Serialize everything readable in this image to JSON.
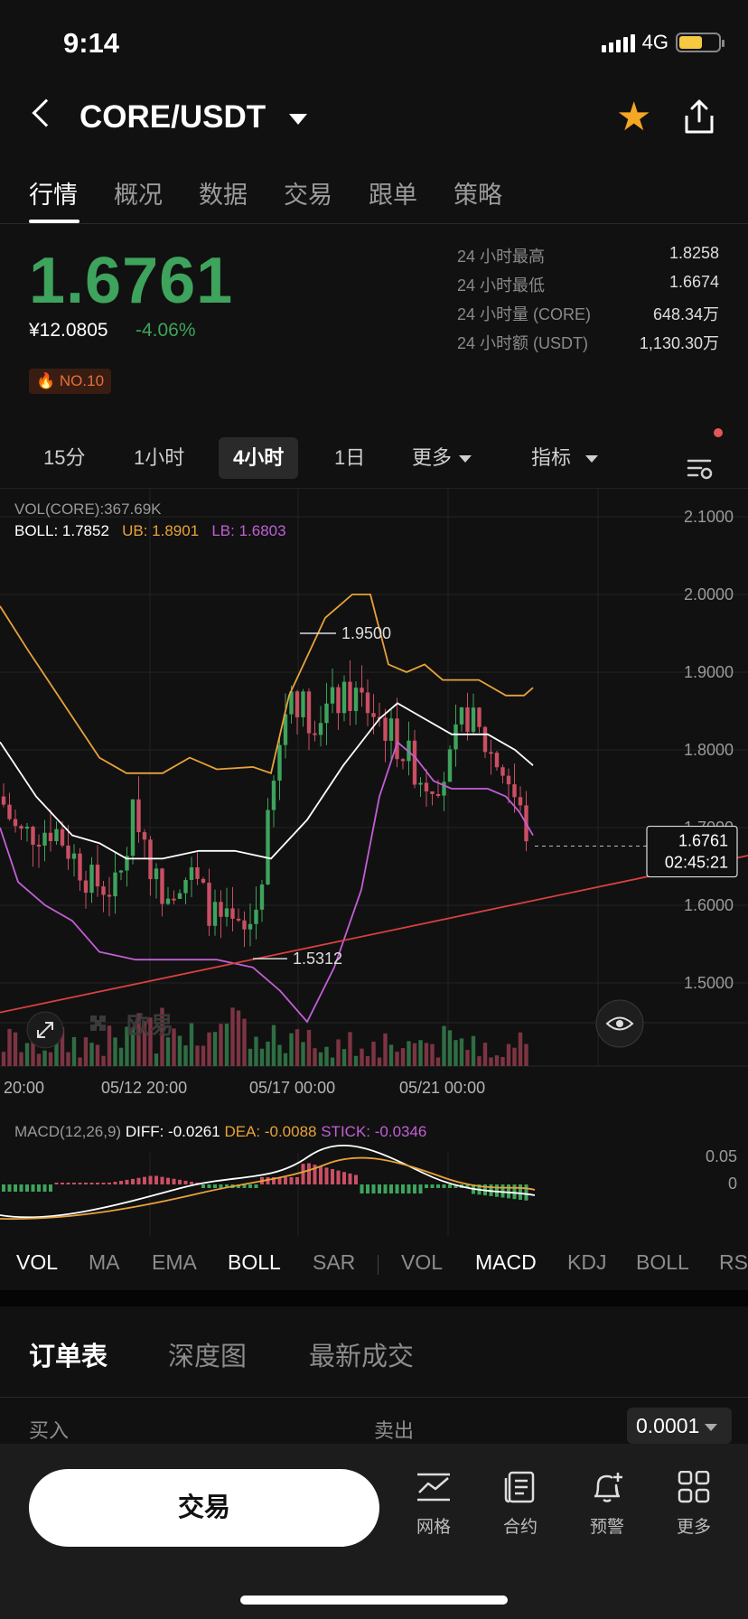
{
  "status": {
    "time": "9:14",
    "network": "4G"
  },
  "header": {
    "pair": "CORE/USDT"
  },
  "tabs": [
    "行情",
    "概况",
    "数据",
    "交易",
    "跟单",
    "策略"
  ],
  "ticker": {
    "price": "1.6761",
    "cny": "¥12.0805",
    "change": "-4.06%",
    "rank": "NO.10",
    "stats": [
      {
        "label": "24 小时最高",
        "value": "1.8258"
      },
      {
        "label": "24 小时最低",
        "value": "1.6674"
      },
      {
        "label": "24 小时量 (CORE)",
        "value": "648.34万"
      },
      {
        "label": "24 小时额 (USDT)",
        "value": "1,130.30万"
      }
    ]
  },
  "intervals": {
    "i15m": "15分",
    "i1h": "1小时",
    "i4h": "4小时",
    "i1d": "1日",
    "more": "更多",
    "indicator": "指标"
  },
  "chart": {
    "vol_legend": "VOL(CORE):367.69K",
    "boll_label": "BOLL: 1.7852",
    "ub_label": "UB: 1.8901",
    "lb_label": "LB: 1.6803",
    "y_ticks": [
      "2.1000",
      "2.0000",
      "1.9000",
      "1.8000",
      "1.7000",
      "1.6000",
      "1.5000"
    ],
    "x_ticks": [
      "20:00",
      "05/12 20:00",
      "05/17 00:00",
      "05/21 00:00"
    ],
    "high_marker": "1.9500",
    "low_marker": "1.5312",
    "last_price": "1.6761",
    "countdown": "02:45:21",
    "watermark": "欧易",
    "macd_label": "MACD(12,26,9)",
    "diff_label": "DIFF: -0.0261",
    "dea_label": "DEA: -0.0088",
    "stick_label": "STICK: -0.0346",
    "macd_ticks": [
      "0.05",
      "0"
    ],
    "colors": {
      "up": "#3ea35c",
      "down": "#c94f63",
      "boll": "#ffffff",
      "ub": "#e8a23a",
      "lb": "#c25fd6",
      "trend": "#d94040"
    }
  },
  "indicators": [
    "VOL",
    "MA",
    "EMA",
    "BOLL",
    "SAR",
    "VOL",
    "MACD",
    "KDJ",
    "BOLL",
    "RSI"
  ],
  "orderbook": {
    "tabs": [
      "订单表",
      "深度图",
      "最新成交"
    ],
    "buy": "买入",
    "sell": "卖出",
    "precision": "0.0001"
  },
  "bottom": {
    "trade": "交易",
    "grid": "网格",
    "contract": "合约",
    "alert": "预警",
    "more": "更多"
  }
}
